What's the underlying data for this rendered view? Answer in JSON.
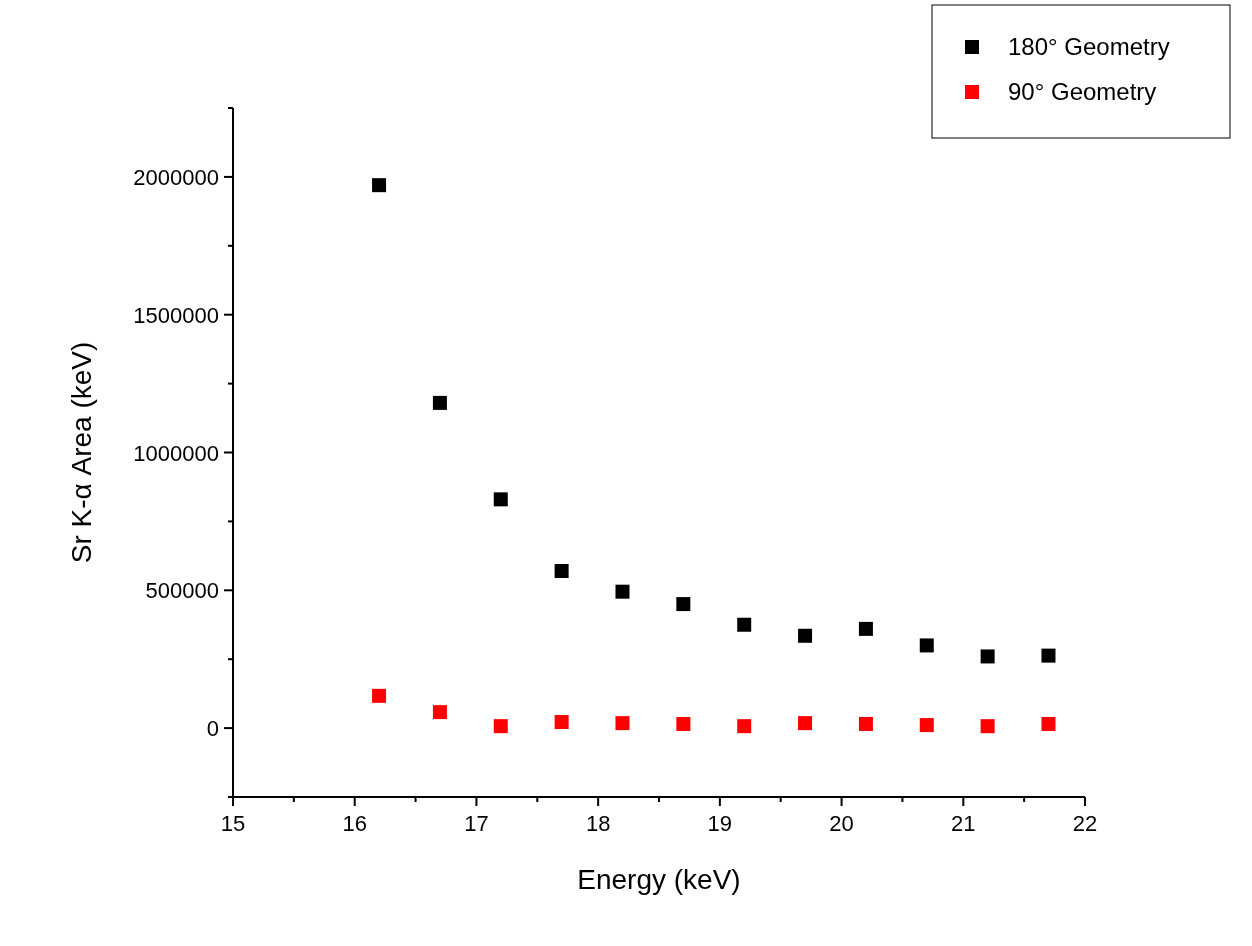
{
  "chart_data": {
    "type": "scatter",
    "xlabel": "Energy (keV)",
    "ylabel": "Sr K-α Area (keV)",
    "x": [
      16.2,
      16.7,
      17.2,
      17.7,
      18.2,
      18.7,
      19.2,
      19.7,
      20.2,
      20.7,
      21.2,
      21.7
    ],
    "series": [
      {
        "name": "180° Geometry",
        "color": "#000000",
        "values": [
          1970000,
          1180000,
          830000,
          570000,
          495000,
          450000,
          375000,
          335000,
          360000,
          300000,
          260000,
          263000
        ]
      },
      {
        "name": "90° Geometry",
        "color": "#ff0000",
        "values": [
          117000,
          58000,
          7000,
          22000,
          18000,
          15000,
          7000,
          18000,
          15000,
          11000,
          7000,
          15000
        ]
      }
    ],
    "marker": "square",
    "legend": "top right",
    "grid": false,
    "xlim": [
      15,
      22
    ],
    "xticks": [
      15,
      {
        "value": 15.5,
        "label": null
      },
      16,
      {
        "value": 16.5,
        "label": null
      },
      17,
      {
        "value": 17.5,
        "label": null
      },
      18,
      {
        "value": 18.5,
        "label": null
      },
      19,
      {
        "value": 19.5,
        "label": null
      },
      20,
      {
        "value": 20.5,
        "label": null
      },
      21,
      {
        "value": 21.5,
        "label": null
      },
      22
    ],
    "ylim": [
      -250000,
      2250000
    ],
    "yticks": [
      {
        "value": -250000,
        "label": null
      },
      0,
      {
        "value": 250000,
        "label": null
      },
      500000,
      {
        "value": 750000,
        "label": null
      },
      1000000,
      {
        "value": 1250000,
        "label": null
      },
      1500000,
      {
        "value": 1750000,
        "label": null
      },
      2000000,
      {
        "value": 2250000,
        "label": null
      }
    ]
  }
}
